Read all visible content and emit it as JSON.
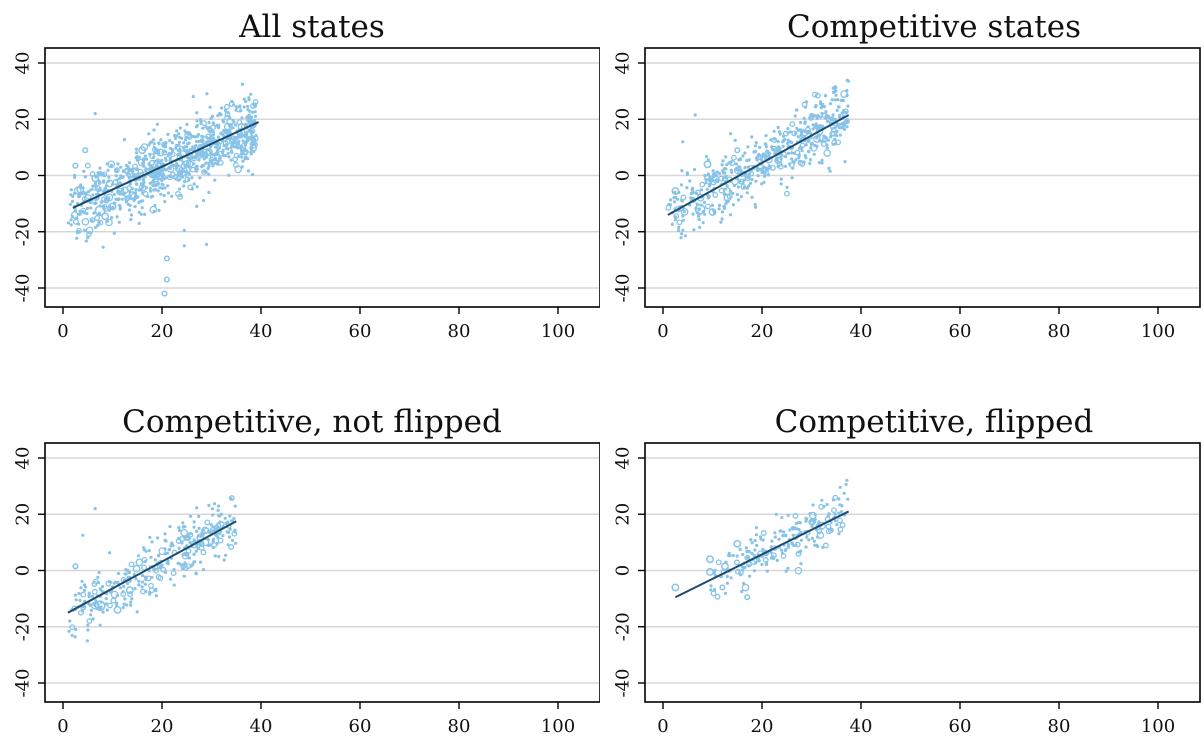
{
  "chart_data": [
    {
      "type": "scatter",
      "title": "All states",
      "xlim": [
        0,
        100
      ],
      "ylim": [
        -45,
        45
      ],
      "x_ticks": [
        "0",
        "20",
        "40",
        "60",
        "80",
        "100"
      ],
      "y_ticks": [
        "-40",
        "-20",
        "0",
        "20",
        "40"
      ],
      "grid": "horizontal",
      "fit_line": {
        "x": [
          2,
          39.5
        ],
        "y": [
          -11.5,
          19
        ]
      },
      "cloud": {
        "count": 900,
        "x_range": [
          1,
          39
        ],
        "slope": 0.81,
        "intercept": -13.2,
        "spread": 6.2,
        "seed": 11
      },
      "points": [
        {
          "x": 7.5,
          "y": -12.5,
          "size": 3
        },
        {
          "x": 5,
          "y": -8,
          "size": 2
        },
        {
          "x": 3.5,
          "y": -5,
          "size": 2
        },
        {
          "x": 8.5,
          "y": -14.5,
          "size": 2
        },
        {
          "x": 6.5,
          "y": -1,
          "size": 2
        },
        {
          "x": 10,
          "y": -11,
          "size": 2
        },
        {
          "x": 2.5,
          "y": 3.5,
          "size": 1
        },
        {
          "x": 14,
          "y": -7,
          "size": 2
        },
        {
          "x": 16,
          "y": 9,
          "size": 2
        },
        {
          "x": 18,
          "y": 4.5,
          "size": 1
        },
        {
          "x": 20.5,
          "y": -42,
          "size": 1
        },
        {
          "x": 21,
          "y": -37,
          "size": 1
        },
        {
          "x": 21,
          "y": -29.5,
          "size": 1
        },
        {
          "x": 24.5,
          "y": -25,
          "size": 0
        },
        {
          "x": 24.5,
          "y": -19.5,
          "size": 0
        },
        {
          "x": 29,
          "y": -24.5,
          "size": 0
        },
        {
          "x": 27,
          "y": -11,
          "size": 0
        },
        {
          "x": 6.5,
          "y": 22,
          "size": 0
        },
        {
          "x": 4.5,
          "y": 9,
          "size": 1
        },
        {
          "x": 3,
          "y": -20,
          "size": 0
        }
      ]
    },
    {
      "type": "scatter",
      "title": "Competitive states",
      "xlim": [
        0,
        100
      ],
      "ylim": [
        -45,
        45
      ],
      "x_ticks": [
        "0",
        "20",
        "40",
        "60",
        "80",
        "100"
      ],
      "y_ticks": [
        "-40",
        "-20",
        "0",
        "20",
        "40"
      ],
      "grid": "horizontal",
      "fit_line": {
        "x": [
          1,
          37.5
        ],
        "y": [
          -14,
          21.5
        ]
      },
      "cloud": {
        "count": 560,
        "x_range": [
          1,
          37.5
        ],
        "slope": 0.97,
        "intercept": -15,
        "spread": 5.4,
        "seed": 23
      },
      "points": [
        {
          "x": 7.5,
          "y": -12,
          "size": 3
        },
        {
          "x": 2.5,
          "y": -5.5,
          "size": 2
        },
        {
          "x": 9,
          "y": 4,
          "size": 2
        },
        {
          "x": 10,
          "y": -13,
          "size": 2
        },
        {
          "x": 15,
          "y": 9,
          "size": 1
        },
        {
          "x": 6.5,
          "y": 21.5,
          "size": 0
        },
        {
          "x": 4,
          "y": 12,
          "size": 0
        },
        {
          "x": 4,
          "y": -19.5,
          "size": 0
        },
        {
          "x": 13,
          "y": -8,
          "size": 2
        }
      ]
    },
    {
      "type": "scatter",
      "title": "Competitive, not flipped",
      "xlim": [
        0,
        100
      ],
      "ylim": [
        -45,
        45
      ],
      "x_ticks": [
        "0",
        "20",
        "40",
        "60",
        "80",
        "100"
      ],
      "y_ticks": [
        "-40",
        "-20",
        "0",
        "20",
        "40"
      ],
      "grid": "horizontal",
      "fit_line": {
        "x": [
          1,
          35
        ],
        "y": [
          -15,
          17.5
        ]
      },
      "cloud": {
        "count": 340,
        "x_range": [
          1,
          35
        ],
        "slope": 0.95,
        "intercept": -16,
        "spread": 5.2,
        "seed": 37
      },
      "points": [
        {
          "x": 7.5,
          "y": -12.5,
          "size": 3
        },
        {
          "x": 2.5,
          "y": 1.5,
          "size": 1
        },
        {
          "x": 6.5,
          "y": 22,
          "size": 0
        },
        {
          "x": 4,
          "y": 12.5,
          "size": 0
        },
        {
          "x": 5,
          "y": -19.5,
          "size": 0
        },
        {
          "x": 11,
          "y": -14,
          "size": 2
        },
        {
          "x": 13.5,
          "y": -7,
          "size": 2
        }
      ]
    },
    {
      "type": "scatter",
      "title": "Competitive, flipped",
      "xlim": [
        0,
        100
      ],
      "ylim": [
        -45,
        45
      ],
      "x_ticks": [
        "0",
        "20",
        "40",
        "60",
        "80",
        "100"
      ],
      "y_ticks": [
        "-40",
        "-20",
        "0",
        "20",
        "40"
      ],
      "grid": "horizontal",
      "fit_line": {
        "x": [
          2.5,
          37.5
        ],
        "y": [
          -9.5,
          21
        ]
      },
      "cloud": {
        "count": 220,
        "x_range": [
          9,
          37.5
        ],
        "slope": 0.9,
        "intercept": -12.5,
        "spread": 4.8,
        "seed": 53
      },
      "points": [
        {
          "x": 2.5,
          "y": -6,
          "size": 2
        },
        {
          "x": 9.5,
          "y": 4,
          "size": 2
        },
        {
          "x": 9.5,
          "y": -0.5,
          "size": 2
        },
        {
          "x": 12.5,
          "y": 1.5,
          "size": 2
        },
        {
          "x": 15,
          "y": 9.5,
          "size": 2
        },
        {
          "x": 17,
          "y": -9.5,
          "size": 1
        },
        {
          "x": 12,
          "y": -6,
          "size": 1
        }
      ]
    }
  ]
}
